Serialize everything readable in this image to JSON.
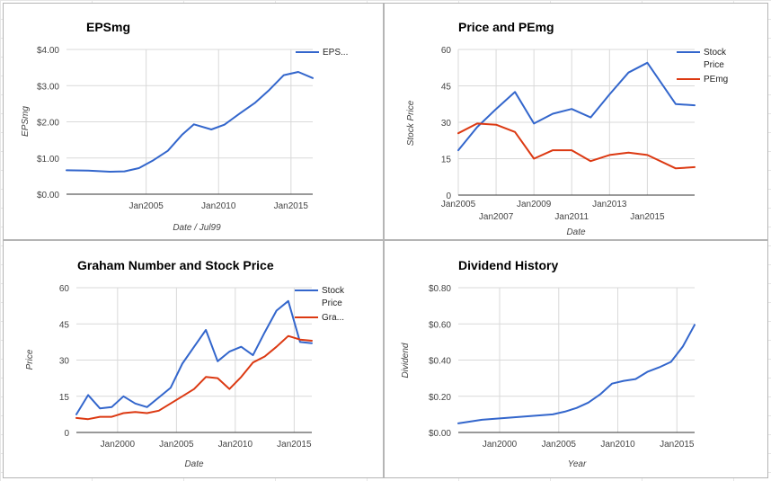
{
  "chart_data": [
    {
      "type": "line",
      "title": "EPSmg",
      "xlabel": "Date / Jul99",
      "ylabel": "EPSmg",
      "xlim": [
        1999.5,
        2016.5
      ],
      "ylim": [
        0,
        4
      ],
      "yticks": [
        0,
        1,
        2,
        3,
        4
      ],
      "ytick_labels": [
        "$0.00",
        "$1.00",
        "$2.00",
        "$3.00",
        "$4.00"
      ],
      "xticks": [
        2005,
        2010,
        2015
      ],
      "xtick_labels": [
        "Jan2005",
        "Jan2010",
        "Jan2015"
      ],
      "grid": true,
      "legend": "right",
      "series": [
        {
          "name": "EPS...",
          "color": "#3366cc",
          "x": [
            1999.5,
            2001,
            2002.5,
            2003.5,
            2004.5,
            2005.5,
            2006.5,
            2007.5,
            2008.3,
            2009.5,
            2010.4,
            2011.5,
            2012.5,
            2013.5,
            2014.5,
            2015.5,
            2016.5
          ],
          "y": [
            0.66,
            0.65,
            0.62,
            0.63,
            0.72,
            0.94,
            1.2,
            1.65,
            1.93,
            1.79,
            1.92,
            2.24,
            2.52,
            2.88,
            3.29,
            3.38,
            3.21
          ]
        }
      ]
    },
    {
      "type": "line",
      "title": "Price and PEmg",
      "xlabel": "Date",
      "ylabel": "Stock Price",
      "xlim": [
        2005,
        2017.5
      ],
      "ylim": [
        0,
        60
      ],
      "yticks": [
        0,
        15,
        30,
        45,
        60
      ],
      "ytick_labels": [
        "0",
        "15",
        "30",
        "45",
        "60"
      ],
      "xticks": [
        2005,
        2007,
        2009,
        2011,
        2013,
        2015
      ],
      "xtick_labels": [
        "Jan2005",
        "Jan2007",
        "Jan2009",
        "Jan2011",
        "Jan2013",
        "Jan2015"
      ],
      "grid": true,
      "legend": "right",
      "series": [
        {
          "name": "Stock Price",
          "color": "#3366cc",
          "x": [
            2005,
            2006,
            2007,
            2008,
            2009,
            2010,
            2011,
            2012,
            2013,
            2014,
            2015,
            2016.5,
            2017.5
          ],
          "y": [
            18.5,
            28,
            35.5,
            42.5,
            29.5,
            33.5,
            35.5,
            32,
            41.5,
            50.5,
            54.5,
            37.5,
            37
          ]
        },
        {
          "name": "PEmg",
          "color": "#dc3912",
          "x": [
            2005,
            2006,
            2007,
            2008,
            2009,
            2010,
            2011,
            2012,
            2013,
            2014,
            2015,
            2016.5,
            2017.5
          ],
          "y": [
            25.5,
            29.5,
            29,
            26,
            15,
            18.5,
            18.5,
            14,
            16.5,
            17.5,
            16.5,
            11,
            11.5
          ]
        }
      ]
    },
    {
      "type": "line",
      "title": "Graham Number and Stock Price",
      "xlabel": "Date",
      "ylabel": "Price",
      "xlim": [
        1996.5,
        2016.5
      ],
      "ylim": [
        0,
        60
      ],
      "yticks": [
        0,
        15,
        30,
        45,
        60
      ],
      "ytick_labels": [
        "0",
        "15",
        "30",
        "45",
        "60"
      ],
      "xticks": [
        2000,
        2005,
        2010,
        2015
      ],
      "xtick_labels": [
        "Jan2000",
        "Jan2005",
        "Jan2010",
        "Jan2015"
      ],
      "grid": true,
      "legend": "right",
      "series": [
        {
          "name": "Stock Price",
          "color": "#3366cc",
          "x": [
            1996.5,
            1997.5,
            1998.5,
            1999.5,
            2000.5,
            2001.5,
            2002.5,
            2003.5,
            2004.5,
            2005.5,
            2006.5,
            2007.5,
            2008.5,
            2009.5,
            2010.5,
            2011.5,
            2012.5,
            2013.5,
            2014.5,
            2015.5,
            2016.5
          ],
          "y": [
            7.5,
            15.5,
            10,
            10.5,
            15,
            12,
            10.5,
            14.5,
            18.5,
            28.5,
            35.5,
            42.5,
            29.5,
            33.5,
            35.5,
            32,
            41.5,
            50.5,
            54.5,
            37.5,
            37
          ]
        },
        {
          "name": "Gra...",
          "color": "#dc3912",
          "x": [
            1996.5,
            1997.5,
            1998.5,
            1999.5,
            2000.5,
            2001.5,
            2002.5,
            2003.5,
            2004.5,
            2005.5,
            2006.5,
            2007.5,
            2008.5,
            2009.5,
            2010.5,
            2011.5,
            2012.5,
            2013.5,
            2014.5,
            2015.5,
            2016.5
          ],
          "y": [
            6,
            5.5,
            6.5,
            6.5,
            8,
            8.5,
            8,
            9,
            12,
            15,
            18,
            23,
            22.5,
            18,
            23,
            29,
            31.5,
            35.5,
            40,
            38.5,
            38
          ]
        }
      ]
    },
    {
      "type": "line",
      "title": "Dividend History",
      "xlabel": "Year",
      "ylabel": "Dividend",
      "xlim": [
        1996.5,
        2016.5
      ],
      "ylim": [
        0,
        0.8
      ],
      "yticks": [
        0,
        0.2,
        0.4,
        0.6,
        0.8
      ],
      "ytick_labels": [
        "$0.00",
        "$0.20",
        "$0.40",
        "$0.60",
        "$0.80"
      ],
      "xticks": [
        2000,
        2005,
        2010,
        2015
      ],
      "xtick_labels": [
        "Jan2000",
        "Jan2005",
        "Jan2010",
        "Jan2015"
      ],
      "grid": true,
      "legend": "none",
      "series": [
        {
          "name": "",
          "color": "#3366cc",
          "x": [
            1996.5,
            1997.5,
            1998.5,
            1999.5,
            2000.5,
            2001.5,
            2002.5,
            2003.5,
            2004.5,
            2005.5,
            2006.5,
            2007.5,
            2008.5,
            2009.5,
            2010.5,
            2011.5,
            2012.5,
            2013.5,
            2014.5,
            2015.5,
            2016.5
          ],
          "y": [
            0.05,
            0.06,
            0.07,
            0.075,
            0.08,
            0.085,
            0.09,
            0.095,
            0.1,
            0.115,
            0.135,
            0.165,
            0.21,
            0.27,
            0.285,
            0.295,
            0.335,
            0.36,
            0.39,
            0.475,
            0.595
          ]
        }
      ]
    }
  ]
}
